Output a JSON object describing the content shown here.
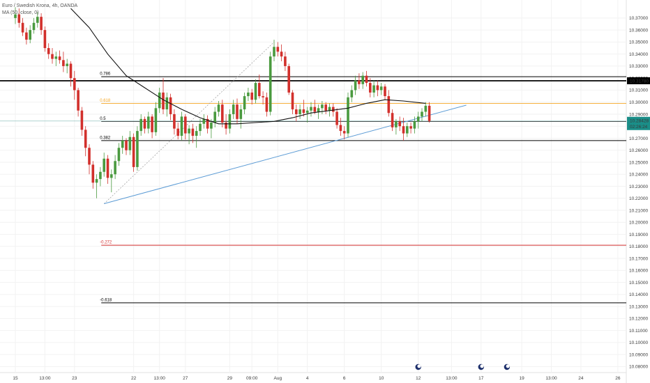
{
  "legend": {
    "title": "Euro / Swedish Krona, 4h, OANDA",
    "indicator": "MA (50, close, 0)"
  },
  "colors": {
    "bull": "#4a9a3f",
    "bear": "#d2302c",
    "ma": "#111111",
    "trendline": "#5b9bd5",
    "orange": "#f5a623",
    "red_line": "#d32f2f",
    "black_line": "#000000",
    "price_label_bg": "#1a8e88",
    "grid": "#f2f2f2"
  },
  "chart_data": {
    "type": "candlestick",
    "title": "Euro / Swedish Krona, 4h, OANDA",
    "ylim": [
      10.075,
      10.385
    ],
    "y_ticks": [
      "10.37000",
      "10.36000",
      "10.35000",
      "10.34000",
      "10.33000",
      "10.32000",
      "10.31000",
      "10.30000",
      "10.29000",
      "10.28000",
      "10.27000",
      "10.26000",
      "10.25000",
      "10.24000",
      "10.23000",
      "10.22000",
      "10.21000",
      "10.20000",
      "10.19000",
      "10.18000",
      "10.17000",
      "10.16000",
      "10.15000",
      "10.14000",
      "10.13000",
      "10.12000",
      "10.11000",
      "10.10000",
      "10.09000",
      "10.08000"
    ],
    "x_ticks": [
      {
        "label": "15",
        "i": 0
      },
      {
        "label": "13:00",
        "i": 8
      },
      {
        "label": "23",
        "i": 16
      },
      {
        "label": "22",
        "i": 32
      },
      {
        "label": "13:00",
        "i": 39
      },
      {
        "label": "27",
        "i": 46
      },
      {
        "label": "29",
        "i": 58
      },
      {
        "label": "09:00",
        "i": 64
      },
      {
        "label": "Aug",
        "i": 71
      },
      {
        "label": "4",
        "i": 79
      },
      {
        "label": "6",
        "i": 89
      },
      {
        "label": "10",
        "i": 99
      },
      {
        "label": "12",
        "i": 109
      },
      {
        "label": "13:00",
        "i": 118
      },
      {
        "label": "17",
        "i": 126
      },
      {
        "label": "19",
        "i": 137
      },
      {
        "label": "13:00",
        "i": 145
      },
      {
        "label": "24",
        "i": 153
      },
      {
        "label": "26",
        "i": 163
      }
    ],
    "candles": [
      {
        "o": 10.37,
        "h": 10.379,
        "l": 10.365,
        "c": 10.373
      },
      {
        "o": 10.373,
        "h": 10.378,
        "l": 10.362,
        "c": 10.366
      },
      {
        "o": 10.366,
        "h": 10.37,
        "l": 10.355,
        "c": 10.358
      },
      {
        "o": 10.358,
        "h": 10.362,
        "l": 10.348,
        "c": 10.352
      },
      {
        "o": 10.352,
        "h": 10.364,
        "l": 10.349,
        "c": 10.36
      },
      {
        "o": 10.36,
        "h": 10.37,
        "l": 10.357,
        "c": 10.366
      },
      {
        "o": 10.366,
        "h": 10.375,
        "l": 10.362,
        "c": 10.371
      },
      {
        "o": 10.371,
        "h": 10.374,
        "l": 10.356,
        "c": 10.36
      },
      {
        "o": 10.36,
        "h": 10.363,
        "l": 10.342,
        "c": 10.345
      },
      {
        "o": 10.345,
        "h": 10.349,
        "l": 10.336,
        "c": 10.34
      },
      {
        "o": 10.34,
        "h": 10.345,
        "l": 10.332,
        "c": 10.336
      },
      {
        "o": 10.336,
        "h": 10.342,
        "l": 10.33,
        "c": 10.338
      },
      {
        "o": 10.338,
        "h": 10.343,
        "l": 10.332,
        "c": 10.335
      },
      {
        "o": 10.335,
        "h": 10.342,
        "l": 10.325,
        "c": 10.33
      },
      {
        "o": 10.33,
        "h": 10.336,
        "l": 10.324,
        "c": 10.332
      },
      {
        "o": 10.332,
        "h": 10.334,
        "l": 10.313,
        "c": 10.32
      },
      {
        "o": 10.32,
        "h": 10.326,
        "l": 10.302,
        "c": 10.31
      },
      {
        "o": 10.31,
        "h": 10.312,
        "l": 10.288,
        "c": 10.293
      },
      {
        "o": 10.293,
        "h": 10.296,
        "l": 10.272,
        "c": 10.277
      },
      {
        "o": 10.277,
        "h": 10.28,
        "l": 10.255,
        "c": 10.262
      },
      {
        "o": 10.262,
        "h": 10.265,
        "l": 10.24,
        "c": 10.248
      },
      {
        "o": 10.248,
        "h": 10.251,
        "l": 10.228,
        "c": 10.233
      },
      {
        "o": 10.233,
        "h": 10.24,
        "l": 10.22,
        "c": 10.236
      },
      {
        "o": 10.236,
        "h": 10.246,
        "l": 10.23,
        "c": 10.242
      },
      {
        "o": 10.242,
        "h": 10.258,
        "l": 10.238,
        "c": 10.253
      },
      {
        "o": 10.253,
        "h": 10.256,
        "l": 10.232,
        "c": 10.237
      },
      {
        "o": 10.237,
        "h": 10.244,
        "l": 10.225,
        "c": 10.24
      },
      {
        "o": 10.24,
        "h": 10.256,
        "l": 10.236,
        "c": 10.251
      },
      {
        "o": 10.251,
        "h": 10.266,
        "l": 10.247,
        "c": 10.262
      },
      {
        "o": 10.262,
        "h": 10.272,
        "l": 10.257,
        "c": 10.268
      },
      {
        "o": 10.268,
        "h": 10.27,
        "l": 10.256,
        "c": 10.26
      },
      {
        "o": 10.26,
        "h": 10.276,
        "l": 10.256,
        "c": 10.271
      },
      {
        "o": 10.271,
        "h": 10.274,
        "l": 10.242,
        "c": 10.246
      },
      {
        "o": 10.246,
        "h": 10.28,
        "l": 10.243,
        "c": 10.276
      },
      {
        "o": 10.276,
        "h": 10.29,
        "l": 10.272,
        "c": 10.286
      },
      {
        "o": 10.286,
        "h": 10.288,
        "l": 10.274,
        "c": 10.278
      },
      {
        "o": 10.278,
        "h": 10.292,
        "l": 10.274,
        "c": 10.288
      },
      {
        "o": 10.288,
        "h": 10.29,
        "l": 10.27,
        "c": 10.275
      },
      {
        "o": 10.275,
        "h": 10.3,
        "l": 10.272,
        "c": 10.295
      },
      {
        "o": 10.295,
        "h": 10.312,
        "l": 10.291,
        "c": 10.308
      },
      {
        "o": 10.308,
        "h": 10.32,
        "l": 10.29,
        "c": 10.294
      },
      {
        "o": 10.294,
        "h": 10.308,
        "l": 10.288,
        "c": 10.304
      },
      {
        "o": 10.304,
        "h": 10.307,
        "l": 10.285,
        "c": 10.29
      },
      {
        "o": 10.29,
        "h": 10.294,
        "l": 10.273,
        "c": 10.278
      },
      {
        "o": 10.278,
        "h": 10.283,
        "l": 10.269,
        "c": 10.272
      },
      {
        "o": 10.272,
        "h": 10.292,
        "l": 10.268,
        "c": 10.288
      },
      {
        "o": 10.288,
        "h": 10.29,
        "l": 10.269,
        "c": 10.274
      },
      {
        "o": 10.274,
        "h": 10.281,
        "l": 10.265,
        "c": 10.278
      },
      {
        "o": 10.278,
        "h": 10.282,
        "l": 10.266,
        "c": 10.272
      },
      {
        "o": 10.272,
        "h": 10.28,
        "l": 10.262,
        "c": 10.276
      },
      {
        "o": 10.276,
        "h": 10.286,
        "l": 10.272,
        "c": 10.282
      },
      {
        "o": 10.282,
        "h": 10.29,
        "l": 10.278,
        "c": 10.286
      },
      {
        "o": 10.286,
        "h": 10.289,
        "l": 10.274,
        "c": 10.278
      },
      {
        "o": 10.278,
        "h": 10.286,
        "l": 10.27,
        "c": 10.283
      },
      {
        "o": 10.283,
        "h": 10.296,
        "l": 10.279,
        "c": 10.292
      },
      {
        "o": 10.292,
        "h": 10.301,
        "l": 10.288,
        "c": 10.298
      },
      {
        "o": 10.298,
        "h": 10.302,
        "l": 10.279,
        "c": 10.283
      },
      {
        "o": 10.283,
        "h": 10.29,
        "l": 10.273,
        "c": 10.278
      },
      {
        "o": 10.278,
        "h": 10.294,
        "l": 10.274,
        "c": 10.29
      },
      {
        "o": 10.29,
        "h": 10.302,
        "l": 10.286,
        "c": 10.298
      },
      {
        "o": 10.298,
        "h": 10.303,
        "l": 10.282,
        "c": 10.286
      },
      {
        "o": 10.286,
        "h": 10.298,
        "l": 10.278,
        "c": 10.294
      },
      {
        "o": 10.294,
        "h": 10.308,
        "l": 10.29,
        "c": 10.305
      },
      {
        "o": 10.305,
        "h": 10.312,
        "l": 10.301,
        "c": 10.308
      },
      {
        "o": 10.308,
        "h": 10.311,
        "l": 10.298,
        "c": 10.302
      },
      {
        "o": 10.302,
        "h": 10.319,
        "l": 10.299,
        "c": 10.316
      },
      {
        "o": 10.316,
        "h": 10.323,
        "l": 10.303,
        "c": 10.305
      },
      {
        "o": 10.305,
        "h": 10.309,
        "l": 10.298,
        "c": 10.304
      },
      {
        "o": 10.304,
        "h": 10.308,
        "l": 10.288,
        "c": 10.292
      },
      {
        "o": 10.292,
        "h": 10.342,
        "l": 10.289,
        "c": 10.338
      },
      {
        "o": 10.338,
        "h": 10.352,
        "l": 10.334,
        "c": 10.346
      },
      {
        "o": 10.346,
        "h": 10.35,
        "l": 10.338,
        "c": 10.342
      },
      {
        "o": 10.342,
        "h": 10.348,
        "l": 10.334,
        "c": 10.338
      },
      {
        "o": 10.338,
        "h": 10.342,
        "l": 10.326,
        "c": 10.33
      },
      {
        "o": 10.33,
        "h": 10.332,
        "l": 10.306,
        "c": 10.308
      },
      {
        "o": 10.308,
        "h": 10.31,
        "l": 10.29,
        "c": 10.294
      },
      {
        "o": 10.294,
        "h": 10.298,
        "l": 10.284,
        "c": 10.29
      },
      {
        "o": 10.29,
        "h": 10.298,
        "l": 10.286,
        "c": 10.294
      },
      {
        "o": 10.294,
        "h": 10.302,
        "l": 10.288,
        "c": 10.291
      },
      {
        "o": 10.291,
        "h": 10.296,
        "l": 10.283,
        "c": 10.293
      },
      {
        "o": 10.293,
        "h": 10.3,
        "l": 10.288,
        "c": 10.296
      },
      {
        "o": 10.296,
        "h": 10.302,
        "l": 10.29,
        "c": 10.292
      },
      {
        "o": 10.292,
        "h": 10.298,
        "l": 10.286,
        "c": 10.295
      },
      {
        "o": 10.295,
        "h": 10.301,
        "l": 10.29,
        "c": 10.298
      },
      {
        "o": 10.298,
        "h": 10.3,
        "l": 10.29,
        "c": 10.293
      },
      {
        "o": 10.293,
        "h": 10.299,
        "l": 10.288,
        "c": 10.296
      },
      {
        "o": 10.296,
        "h": 10.299,
        "l": 10.288,
        "c": 10.292
      },
      {
        "o": 10.292,
        "h": 10.295,
        "l": 10.278,
        "c": 10.281
      },
      {
        "o": 10.281,
        "h": 10.287,
        "l": 10.272,
        "c": 10.276
      },
      {
        "o": 10.276,
        "h": 10.28,
        "l": 10.269,
        "c": 10.274
      },
      {
        "o": 10.274,
        "h": 10.308,
        "l": 10.271,
        "c": 10.304
      },
      {
        "o": 10.304,
        "h": 10.314,
        "l": 10.3,
        "c": 10.31
      },
      {
        "o": 10.31,
        "h": 10.322,
        "l": 10.306,
        "c": 10.318
      },
      {
        "o": 10.318,
        "h": 10.324,
        "l": 10.311,
        "c": 10.315
      },
      {
        "o": 10.315,
        "h": 10.325,
        "l": 10.311,
        "c": 10.322
      },
      {
        "o": 10.322,
        "h": 10.326,
        "l": 10.313,
        "c": 10.316
      },
      {
        "o": 10.316,
        "h": 10.32,
        "l": 10.304,
        "c": 10.308
      },
      {
        "o": 10.308,
        "h": 10.318,
        "l": 10.304,
        "c": 10.314
      },
      {
        "o": 10.314,
        "h": 10.318,
        "l": 10.305,
        "c": 10.31
      },
      {
        "o": 10.31,
        "h": 10.316,
        "l": 10.306,
        "c": 10.313
      },
      {
        "o": 10.313,
        "h": 10.315,
        "l": 10.302,
        "c": 10.305
      },
      {
        "o": 10.305,
        "h": 10.31,
        "l": 10.288,
        "c": 10.291
      },
      {
        "o": 10.291,
        "h": 10.294,
        "l": 10.276,
        "c": 10.279
      },
      {
        "o": 10.279,
        "h": 10.286,
        "l": 10.273,
        "c": 10.284
      },
      {
        "o": 10.284,
        "h": 10.288,
        "l": 10.276,
        "c": 10.28
      },
      {
        "o": 10.28,
        "h": 10.287,
        "l": 10.268,
        "c": 10.274
      },
      {
        "o": 10.274,
        "h": 10.283,
        "l": 10.271,
        "c": 10.28
      },
      {
        "o": 10.28,
        "h": 10.283,
        "l": 10.274,
        "c": 10.278
      },
      {
        "o": 10.278,
        "h": 10.288,
        "l": 10.274,
        "c": 10.284
      },
      {
        "o": 10.284,
        "h": 10.292,
        "l": 10.278,
        "c": 10.288
      },
      {
        "o": 10.288,
        "h": 10.295,
        "l": 10.284,
        "c": 10.292
      },
      {
        "o": 10.292,
        "h": 10.3,
        "l": 10.288,
        "c": 10.297
      },
      {
        "o": 10.297,
        "h": 10.3,
        "l": 10.283,
        "c": 10.2843
      }
    ],
    "ma_50": [
      {
        "i": 15,
        "v": 10.378
      },
      {
        "i": 20,
        "v": 10.362
      },
      {
        "i": 25,
        "v": 10.34
      },
      {
        "i": 30,
        "v": 10.322
      },
      {
        "i": 35,
        "v": 10.312
      },
      {
        "i": 40,
        "v": 10.302
      },
      {
        "i": 45,
        "v": 10.294
      },
      {
        "i": 50,
        "v": 10.287
      },
      {
        "i": 55,
        "v": 10.282
      },
      {
        "i": 60,
        "v": 10.282
      },
      {
        "i": 65,
        "v": 10.283
      },
      {
        "i": 70,
        "v": 10.284
      },
      {
        "i": 75,
        "v": 10.287
      },
      {
        "i": 80,
        "v": 10.291
      },
      {
        "i": 85,
        "v": 10.293
      },
      {
        "i": 90,
        "v": 10.295
      },
      {
        "i": 95,
        "v": 10.299
      },
      {
        "i": 100,
        "v": 10.302
      },
      {
        "i": 105,
        "v": 10.301
      },
      {
        "i": 111,
        "v": 10.299
      }
    ],
    "trendline": [
      {
        "i": 24,
        "v": 10.2155
      },
      {
        "i": 122,
        "v": 10.2975
      }
    ],
    "projection": [
      {
        "i": 24,
        "v": 10.2155
      },
      {
        "i": 70,
        "v": 10.35
      }
    ],
    "fib_levels": [
      {
        "label": "0.786",
        "value": 10.3212,
        "kind": "black"
      },
      {
        "label": "0.618",
        "value": 10.299,
        "kind": "orange"
      },
      {
        "label": "0.5",
        "value": 10.284,
        "kind": "black"
      },
      {
        "label": "0.382",
        "value": 10.268,
        "kind": "black"
      },
      {
        "label": "-0.272",
        "value": 10.181,
        "kind": "red"
      },
      {
        "label": "-0.618",
        "value": 10.133,
        "kind": "black"
      }
    ],
    "fib_label_start_i": 24,
    "resistance_value": 10.3178,
    "resistance_label": "10.31780",
    "current_price_label": "10.28428",
    "countdown_label": "02:26:24",
    "hline_current": 10.2843,
    "event_markers": [
      109,
      126,
      133
    ]
  }
}
